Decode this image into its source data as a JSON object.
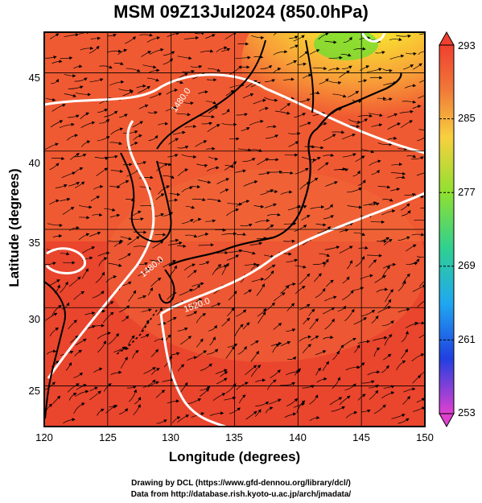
{
  "title": "MSM 09Z13Jul2024 (850.0hPa)",
  "axes": {
    "xlabel": "Longitude (degrees)",
    "ylabel": "Latitude  (degrees)",
    "xticks": [
      "120",
      "125",
      "130",
      "135",
      "140",
      "145",
      "150"
    ],
    "yticks": [
      "25",
      "30",
      "35",
      "40",
      "45"
    ],
    "xlim": [
      120,
      150
    ],
    "ylim": [
      22.4,
      47.6
    ]
  },
  "colorbar": {
    "ticks": [
      "293",
      "285",
      "277",
      "269",
      "261",
      "253"
    ],
    "range": [
      253,
      293
    ]
  },
  "contour_labels": {
    "c1480a": "1480.0",
    "c1480b": "1480.0",
    "c1520": "1520.0"
  },
  "credits": {
    "line1": "Drawing by DCL (https://www.gfd-dennou.org/library/dcl/)",
    "line2": "Data from http://database.rish.kyoto-u.ac.jp/arch/jmadata/"
  },
  "colors": {
    "field_warm": "#f05030",
    "field_hot": "#e83a28",
    "field_cool": "#ffd040",
    "field_green": "#88e030",
    "contour": "#ffffff",
    "streamline": "#000000",
    "coast": "#000000"
  }
}
